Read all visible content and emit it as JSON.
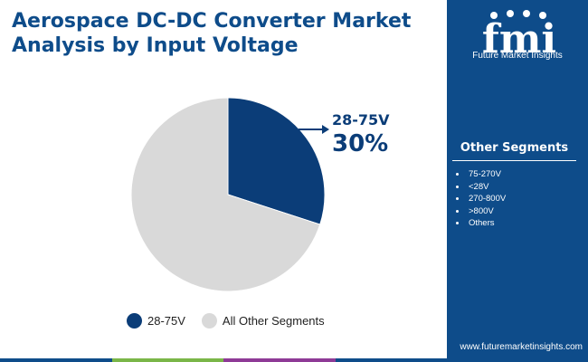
{
  "header": {
    "title": "Aerospace DC-DC Converter Market Analysis by Input Voltage"
  },
  "chart_data": {
    "type": "pie",
    "slices": [
      {
        "label": "28-75V",
        "value": 30,
        "color": "#0b3d78"
      },
      {
        "label": "All Other Segments",
        "value": 70,
        "color": "#d9d9d9"
      }
    ],
    "callout": {
      "label": "28-75V",
      "value_text": "30%"
    },
    "legend_position": "bottom"
  },
  "legend": {
    "items": [
      {
        "label": "28-75V",
        "color": "#0b3d78"
      },
      {
        "label": "All Other Segments",
        "color": "#d9d9d9"
      }
    ]
  },
  "sidebar": {
    "brand_name": "Future Market Insights",
    "logo_letters": "fmi",
    "segments_title": "Other Segments",
    "segments": [
      "75-270V",
      "<28V",
      "270-800V",
      ">800V",
      "Others"
    ],
    "url": "www.futuremarketinsights.com",
    "background": "#0e4c8a"
  },
  "footer_bar_colors": [
    "#0e4c8a",
    "#7ab648",
    "#8e3a96",
    "#0e4c8a"
  ]
}
